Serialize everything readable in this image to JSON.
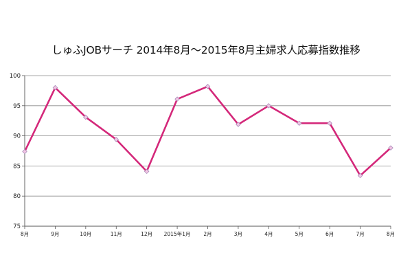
{
  "chart_data": {
    "type": "line",
    "title": "しゅふJOBサーチ  2014年8月～2015年8月主婦求人応募指数推移",
    "xlabel": "",
    "ylabel": "",
    "categories": [
      "8月",
      "9月",
      "10月",
      "11月",
      "12月",
      "2015年1月",
      "2月",
      "3月",
      "4月",
      "5月",
      "6月",
      "7月",
      "8月"
    ],
    "series": [
      {
        "values": [
          87.4,
          98.0,
          93.1,
          89.4,
          84.1,
          96.1,
          98.2,
          91.9,
          95.0,
          92.1,
          92.1,
          83.4,
          88.0
        ]
      }
    ],
    "ylim": [
      75,
      100
    ],
    "yticks": [
      75,
      80,
      85,
      90,
      95,
      100
    ],
    "grid": "horizontal",
    "colors": {
      "line": "#d4287a",
      "marker_fill": "#f4c6e4",
      "marker_stroke": "#a88ab8",
      "grid": "#8a8a8a",
      "axis": "#555555"
    }
  }
}
